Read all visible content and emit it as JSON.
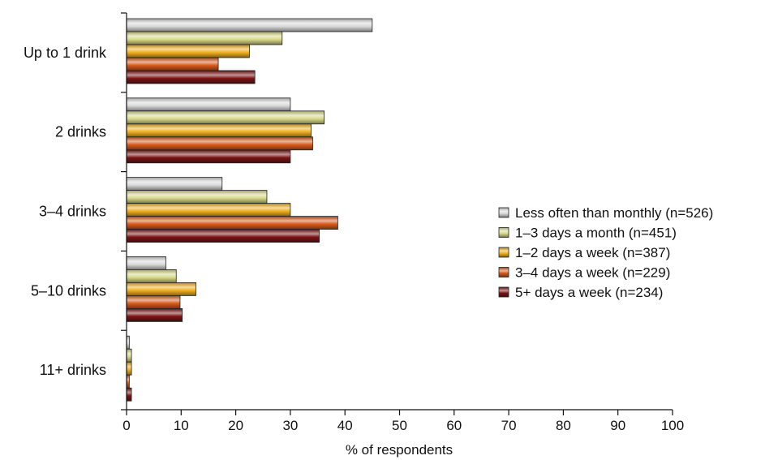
{
  "chart_data": {
    "type": "bar",
    "orientation": "horizontal",
    "categories": [
      "Up to 1 drink",
      "2 drinks",
      "3–4 drinks",
      "5–10 drinks",
      "11+ drinks"
    ],
    "series": [
      {
        "name": "Less often than monthly (n=526)",
        "values": [
          45,
          30,
          17.5,
          7.2,
          0.5
        ],
        "color": "#d9d9d9"
      },
      {
        "name": "1–3 days a month (n=451)",
        "values": [
          28.5,
          36.2,
          25.7,
          9.1,
          0.9
        ],
        "color": "#d9d98a"
      },
      {
        "name": "1–2 days a week (n=387)",
        "values": [
          22.5,
          33.8,
          30,
          12.7,
          0.9
        ],
        "color": "#f0b020"
      },
      {
        "name": "3–4 days a week (n=229)",
        "values": [
          16.8,
          34.1,
          38.7,
          9.8,
          0.5
        ],
        "color": "#d85a1c"
      },
      {
        "name": "5+ days a week (n=234)",
        "values": [
          23.5,
          30,
          35.3,
          10.2,
          0.9
        ],
        "color": "#7a1416"
      }
    ],
    "xlabel": "% of respondents",
    "ylabel": "",
    "xlim": [
      0,
      100
    ],
    "xticks": [
      "0",
      "10",
      "20",
      "30",
      "40",
      "50",
      "60",
      "70",
      "80",
      "90",
      "100"
    ],
    "grid": false,
    "legend_position": "right"
  }
}
